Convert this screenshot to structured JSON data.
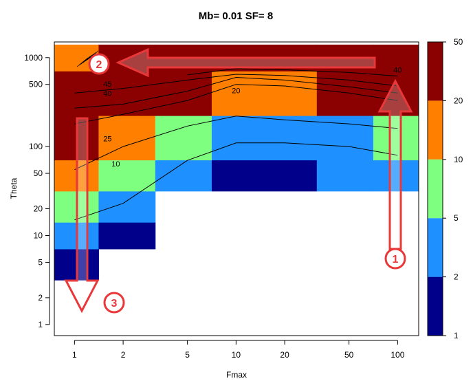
{
  "chart_data": {
    "type": "heatmap",
    "title": "Mb= 0.01 SF= 8",
    "xlabel": "Fmax",
    "ylabel": "Theta",
    "x_scale": "log",
    "y_scale": "log",
    "xlim": [
      0.75,
      135
    ],
    "ylim": [
      0.75,
      1500
    ],
    "x_ticks": [
      1,
      2,
      5,
      10,
      20,
      50,
      100
    ],
    "x_tick_labels": [
      "1",
      "2",
      "5",
      "10",
      "20",
      "50",
      "100"
    ],
    "y_ticks": [
      1,
      2,
      5,
      10,
      20,
      50,
      100,
      500,
      1000
    ],
    "y_tick_labels": [
      "1",
      "2",
      "5",
      "10",
      "20",
      "50",
      "100",
      "500",
      "1000"
    ],
    "colors": {
      "level1": "#00008b",
      "level2": "#1e90ff",
      "level3": "#7fff7f",
      "level4": "#ff8000",
      "level5": "#8b0000",
      "contour": "#000000",
      "annotation": "#e8383a"
    },
    "legend": {
      "placement": "right",
      "breaks": [
        1,
        2,
        5,
        10,
        20,
        50
      ],
      "labels": [
        "1",
        "2",
        "5",
        "10",
        "20",
        "50"
      ]
    },
    "x_edges": [
      0.71,
      1.41,
      3.16,
      7.07,
      31.6,
      70.7,
      135
    ],
    "cells": [
      {
        "y_range": [
          3.16,
          7.07
        ],
        "levels": [
          1,
          null,
          null,
          null,
          null,
          null
        ]
      },
      {
        "y_range": [
          7.07,
          14.1
        ],
        "levels": [
          2,
          1,
          null,
          null,
          null,
          null
        ]
      },
      {
        "y_range": [
          14.1,
          31.6
        ],
        "levels": [
          3,
          2,
          null,
          null,
          null,
          null
        ]
      },
      {
        "y_range": [
          31.6,
          70.7
        ],
        "levels": [
          4,
          3,
          2,
          1,
          2,
          2
        ]
      },
      {
        "y_range": [
          70.7,
          223
        ],
        "levels": [
          5,
          4,
          3,
          2,
          2,
          3
        ]
      },
      {
        "y_range": [
          223,
          707
        ],
        "levels": [
          5,
          5,
          5,
          4,
          5,
          5
        ]
      },
      {
        "y_range": [
          707,
          1400
        ],
        "levels": [
          4,
          5,
          5,
          5,
          5,
          5
        ]
      }
    ],
    "contours": [
      {
        "label": "10",
        "points": [
          [
            1,
            15
          ],
          [
            2,
            23
          ],
          [
            5,
            70
          ],
          [
            10,
            110
          ],
          [
            20,
            110
          ],
          [
            50,
            100
          ],
          [
            100,
            80
          ]
        ],
        "label_at": [
          1.8,
          60
        ]
      },
      {
        "label": "25",
        "points": [
          [
            1,
            55
          ],
          [
            2,
            100
          ],
          [
            5,
            170
          ],
          [
            10,
            220
          ],
          [
            20,
            200
          ],
          [
            50,
            180
          ],
          [
            100,
            160
          ]
        ],
        "label_at": [
          1.6,
          115
        ]
      },
      {
        "label": "40",
        "points": [
          [
            1,
            270
          ],
          [
            2,
            300
          ],
          [
            5,
            420
          ],
          [
            10,
            600
          ],
          [
            20,
            560
          ],
          [
            50,
            470
          ],
          [
            100,
            400
          ]
        ],
        "label_at": [
          1.6,
          370
        ]
      },
      {
        "label": "45",
        "points": [
          [
            1,
            400
          ],
          [
            2,
            450
          ],
          [
            5,
            560
          ],
          [
            10,
            650
          ],
          [
            20,
            630
          ],
          [
            50,
            560
          ],
          [
            100,
            480
          ]
        ],
        "label_at": [
          1.6,
          470
        ]
      },
      {
        "label": "20",
        "points": [
          [
            1,
            180
          ],
          [
            2,
            230
          ],
          [
            5,
            330
          ],
          [
            10,
            500
          ],
          [
            20,
            480
          ],
          [
            50,
            400
          ],
          [
            100,
            330
          ]
        ],
        "label_at": [
          10,
          400
        ]
      },
      {
        "label": "40",
        "points": [
          [
            5,
            640
          ],
          [
            10,
            750
          ],
          [
            20,
            730
          ],
          [
            50,
            680
          ],
          [
            100,
            620
          ]
        ],
        "label_at": [
          100,
          680
        ]
      }
    ],
    "arrows": [
      {
        "label": "1",
        "direction": "up"
      },
      {
        "label": "2",
        "direction": "left"
      },
      {
        "label": "3",
        "direction": "down"
      }
    ]
  }
}
